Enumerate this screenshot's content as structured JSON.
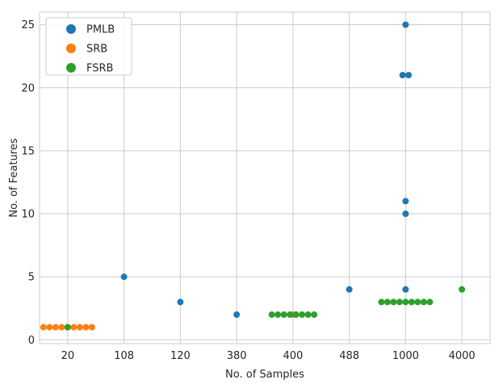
{
  "chart_data": {
    "type": "scatter",
    "xlabel": "No. of Samples",
    "ylabel": "No. of Features",
    "x_categories": [
      "20",
      "108",
      "120",
      "380",
      "400",
      "488",
      "1000",
      "4000"
    ],
    "y_ticks": [
      0,
      5,
      10,
      15,
      20,
      25
    ],
    "ylim": [
      -0.3,
      26.0
    ],
    "grid": true,
    "legend_position": "top-left",
    "series": [
      {
        "name": "PMLB",
        "color": "#1f77b4",
        "points": [
          {
            "x": "108",
            "y": 5
          },
          {
            "x": "120",
            "y": 3
          },
          {
            "x": "380",
            "y": 2
          },
          {
            "x": "488",
            "y": 4
          },
          {
            "x": "1000",
            "y": 25
          },
          {
            "x": "1000",
            "y": 21
          },
          {
            "x": "1000",
            "y": 21
          },
          {
            "x": "1000",
            "y": 11
          },
          {
            "x": "1000",
            "y": 10
          },
          {
            "x": "1000",
            "y": 4
          }
        ]
      },
      {
        "name": "SRB",
        "color": "#ff7f0e",
        "points": [
          {
            "x": "20",
            "y": 1
          },
          {
            "x": "20",
            "y": 1
          },
          {
            "x": "20",
            "y": 1
          },
          {
            "x": "20",
            "y": 1
          },
          {
            "x": "20",
            "y": 1
          },
          {
            "x": "20",
            "y": 1
          },
          {
            "x": "20",
            "y": 1
          },
          {
            "x": "20",
            "y": 1
          },
          {
            "x": "20",
            "y": 1
          },
          {
            "x": "400",
            "y": 2
          }
        ]
      },
      {
        "name": "FSRB",
        "color": "#2ca02c",
        "points": [
          {
            "x": "20",
            "y": 1
          },
          {
            "x": "400",
            "y": 2
          },
          {
            "x": "400",
            "y": 2
          },
          {
            "x": "400",
            "y": 2
          },
          {
            "x": "400",
            "y": 2
          },
          {
            "x": "400",
            "y": 2
          },
          {
            "x": "400",
            "y": 2
          },
          {
            "x": "400",
            "y": 2
          },
          {
            "x": "400",
            "y": 2
          },
          {
            "x": "1000",
            "y": 3
          },
          {
            "x": "1000",
            "y": 3
          },
          {
            "x": "1000",
            "y": 3
          },
          {
            "x": "1000",
            "y": 3
          },
          {
            "x": "1000",
            "y": 3
          },
          {
            "x": "1000",
            "y": 3
          },
          {
            "x": "1000",
            "y": 3
          },
          {
            "x": "1000",
            "y": 3
          },
          {
            "x": "1000",
            "y": 3
          },
          {
            "x": "4000",
            "y": 4
          }
        ]
      }
    ]
  }
}
